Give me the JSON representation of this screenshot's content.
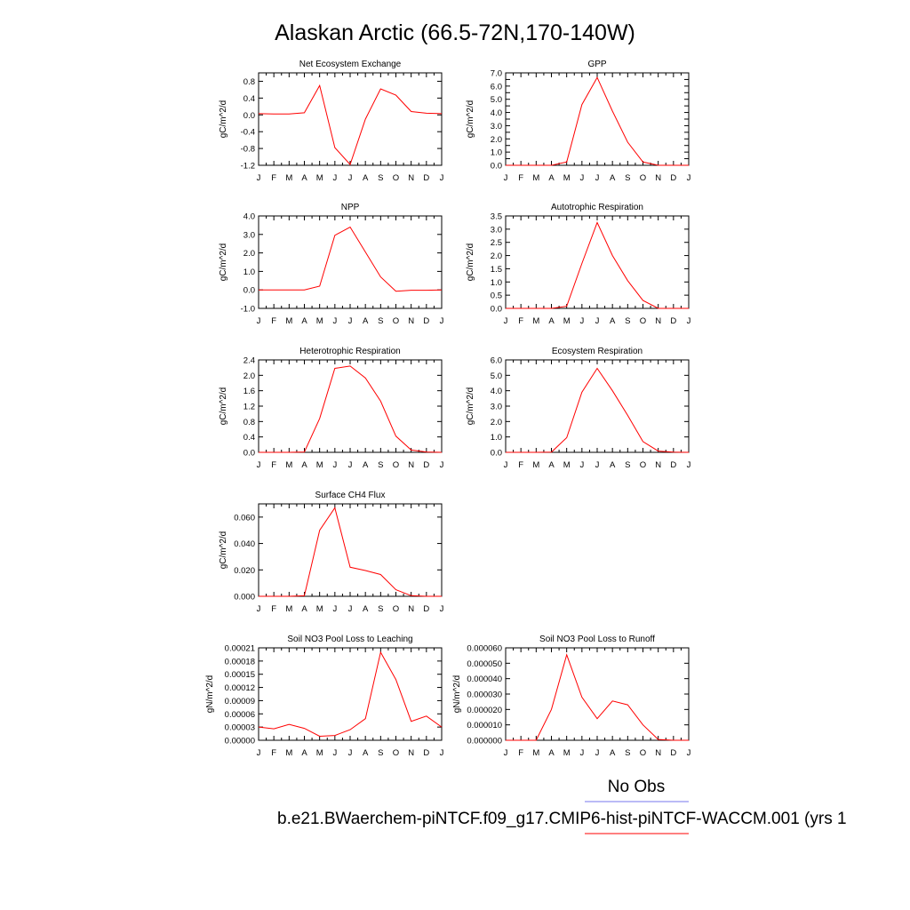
{
  "title": "Alaskan Arctic (66.5-72N,170-140W)",
  "months": [
    "J",
    "F",
    "M",
    "A",
    "M",
    "J",
    "J",
    "A",
    "S",
    "O",
    "N",
    "D",
    "J"
  ],
  "legend": {
    "obs_label": "No Obs",
    "case_label": "b.e21.BWaerchem-piNTCF.f09_g17.CMIP6-hist-piNTCF-WACCM.001 (yrs 1",
    "obs_color": "#7777ee",
    "case_color": "#ff0000"
  },
  "colors": {
    "line": "#ff0000",
    "axis": "#000000"
  },
  "chart_data": [
    {
      "type": "line",
      "title": "Net Ecosystem Exchange",
      "ylabel": "gC/m^2/d",
      "ylim": [
        -1.2,
        1.0
      ],
      "yticks": [
        -1.2,
        -0.8,
        -0.4,
        0.0,
        0.4,
        0.8
      ],
      "ytick_labels": [
        "-1.2",
        "-0.8",
        "-0.4",
        "0.0",
        "0.4",
        "0.8"
      ],
      "values": [
        0.03,
        0.02,
        0.02,
        0.05,
        0.7,
        -0.78,
        -1.18,
        -0.1,
        0.62,
        0.47,
        0.08,
        0.04,
        0.03
      ]
    },
    {
      "type": "line",
      "title": "GPP",
      "ylabel": "gC/m^2/d",
      "ylim": [
        0.0,
        7.0
      ],
      "yticks": [
        0,
        0.5,
        1,
        1.5,
        2,
        2.5,
        3,
        3.5,
        4,
        4.5,
        5,
        5.5,
        6,
        6.5,
        7
      ],
      "ytick_labels": [
        "0.0",
        "1.0",
        "2.0",
        "3.0",
        "4.0",
        "5.0",
        "6.0",
        "7.0"
      ],
      "ytick_label_values": [
        0,
        1,
        2,
        3,
        4,
        5,
        6,
        7
      ],
      "values": [
        0.0,
        0.0,
        0.0,
        0.0,
        0.25,
        4.6,
        6.65,
        4.1,
        1.75,
        0.25,
        0.0,
        0.0,
        0.0
      ]
    },
    {
      "type": "line",
      "title": "NPP",
      "ylabel": "gC/m^2/d",
      "ylim": [
        -1.0,
        4.0
      ],
      "yticks": [
        -1,
        0,
        1,
        2,
        3,
        4
      ],
      "ytick_labels": [
        "-1.0",
        "0.0",
        "1.0",
        "2.0",
        "3.0",
        "4.0"
      ],
      "values": [
        0.0,
        0.0,
        0.0,
        0.0,
        0.2,
        2.95,
        3.4,
        2.05,
        0.7,
        -0.07,
        -0.02,
        -0.02,
        0.0
      ]
    },
    {
      "type": "line",
      "title": "Autotrophic Respiration",
      "ylabel": "gC/m^2/d",
      "ylim": [
        0.0,
        3.5
      ],
      "yticks": [
        0,
        0.5,
        1,
        1.5,
        2,
        2.5,
        3,
        3.5
      ],
      "ytick_labels": [
        "0.0",
        "0.5",
        "1.0",
        "1.5",
        "2.0",
        "2.5",
        "3.0",
        "3.5"
      ],
      "values": [
        0.0,
        0.0,
        0.0,
        0.0,
        0.08,
        1.7,
        3.25,
        2.0,
        1.05,
        0.3,
        0.0,
        0.0,
        0.0
      ]
    },
    {
      "type": "line",
      "title": "Heterotrophic Respiration",
      "ylabel": "gC/m^2/d",
      "ylim": [
        0.0,
        2.4
      ],
      "yticks": [
        0,
        0.4,
        0.8,
        1.2,
        1.6,
        2.0,
        2.4
      ],
      "ytick_labels": [
        "0.0",
        "0.4",
        "0.8",
        "1.2",
        "1.6",
        "2.0",
        "2.4"
      ],
      "values": [
        0.0,
        0.0,
        0.0,
        0.01,
        0.88,
        2.18,
        2.24,
        1.93,
        1.33,
        0.42,
        0.06,
        0.01,
        0.0
      ]
    },
    {
      "type": "line",
      "title": "Ecosystem Respiration",
      "ylabel": "gC/m^2/d",
      "ylim": [
        0.0,
        6.0
      ],
      "yticks": [
        0,
        1,
        2,
        3,
        4,
        5,
        6
      ],
      "ytick_labels": [
        "0.0",
        "1.0",
        "2.0",
        "3.0",
        "4.0",
        "5.0",
        "6.0"
      ],
      "values": [
        0.0,
        0.0,
        0.0,
        0.01,
        0.95,
        3.9,
        5.45,
        4.0,
        2.4,
        0.7,
        0.08,
        0.01,
        0.0
      ]
    },
    {
      "type": "line",
      "title": "Surface CH4 Flux",
      "ylabel": "gC/m^2/d",
      "ylim": [
        0.0,
        0.07
      ],
      "yticks": [
        0,
        0.02,
        0.04,
        0.06
      ],
      "ytick_labels": [
        "0.000",
        "0.020",
        "0.040",
        "0.060"
      ],
      "values": [
        0.0,
        0.0,
        0.0,
        0.0004,
        0.05,
        0.067,
        0.022,
        0.0195,
        0.0165,
        0.005,
        0.0005,
        0.0,
        0.0
      ]
    },
    {
      "type": "line",
      "title": "Soil NO3 Pool Loss to Leaching",
      "ylabel": "gN/m^2/d",
      "ylim": [
        0.0,
        0.00021
      ],
      "yticks": [
        0,
        3e-05,
        6e-05,
        9e-05,
        0.00012,
        0.00015,
        0.00018,
        0.00021
      ],
      "ytick_labels": [
        "0.00000",
        "0.00003",
        "0.00006",
        "0.00009",
        "0.00012",
        "0.00015",
        "0.00018",
        "0.00021"
      ],
      "values": [
        3e-05,
        2.6e-05,
        3.6e-05,
        2.7e-05,
        9e-06,
        1.1e-05,
        2.4e-05,
        4.9e-05,
        0.0002,
        0.000138,
        4.3e-05,
        5.5e-05,
        3e-05
      ]
    },
    {
      "type": "line",
      "title": "Soil NO3 Pool Loss to Runoff",
      "ylabel": "gN/m^2/d",
      "ylim": [
        0.0,
        6e-05
      ],
      "yticks": [
        0,
        1e-05,
        2e-05,
        3e-05,
        4e-05,
        5e-05,
        6e-05
      ],
      "ytick_labels": [
        "0.000000",
        "0.000010",
        "0.000020",
        "0.000030",
        "0.000040",
        "0.000050",
        "0.000060"
      ],
      "values": [
        0.0,
        0.0,
        0.0,
        2e-05,
        5.55e-05,
        2.8e-05,
        1.4e-05,
        2.55e-05,
        2.3e-05,
        1e-05,
        5e-07,
        0.0,
        0.0
      ]
    }
  ]
}
